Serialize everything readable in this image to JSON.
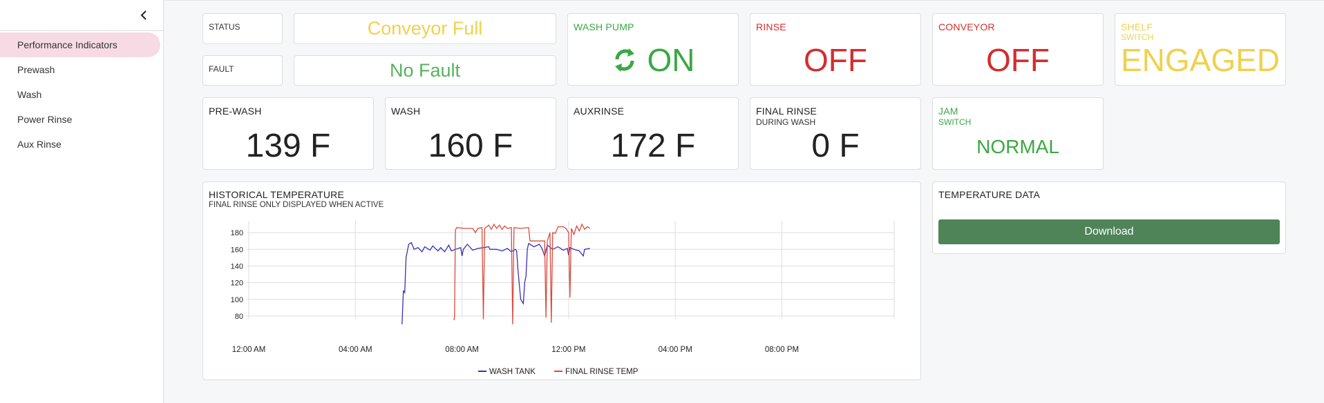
{
  "sidebar": {
    "items": [
      {
        "label": "Performance Indicators",
        "active": true
      },
      {
        "label": "Prewash",
        "active": false
      },
      {
        "label": "Wash",
        "active": false
      },
      {
        "label": "Power Rinse",
        "active": false
      },
      {
        "label": "Aux Rinse",
        "active": false
      }
    ]
  },
  "status": {
    "label": "STATUS",
    "value": "Conveyor Full"
  },
  "fault": {
    "label": "FAULT",
    "value": "No Fault"
  },
  "wash_pump": {
    "label": "WASH PUMP",
    "value": "ON",
    "icon": "sync-icon"
  },
  "rinse": {
    "label": "RINSE",
    "value": "OFF"
  },
  "conveyor": {
    "label": "CONVEYOR",
    "value": "OFF"
  },
  "shelf_switch": {
    "label": "SHELF",
    "sublabel": "SWITCH",
    "value": "ENGAGED"
  },
  "prewash": {
    "label": "PRE-WASH",
    "value": "139 F"
  },
  "wash": {
    "label": "WASH",
    "value": "160 F"
  },
  "auxrinse": {
    "label": "AUXRINSE",
    "value": "172 F"
  },
  "final_rinse": {
    "label": "FINAL RINSE",
    "sublabel": "DURING WASH",
    "value": "0 F"
  },
  "jam_switch": {
    "label": "JAM",
    "sublabel": "SWITCH",
    "value": "NORMAL"
  },
  "history": {
    "title": "HISTORICAL TEMPERATURE",
    "subtitle": "FINAL RINSE ONLY DISPLAYED WHEN ACTIVE"
  },
  "temperature_data": {
    "title": "TEMPERATURE DATA",
    "download_label": "Download"
  },
  "colors": {
    "yellow": "#f0d14d",
    "green": "#3aa843",
    "red": "#d42d2d",
    "wash_series": "#3a2fb5",
    "rinse_series": "#d94a3d",
    "button": "#4f8459",
    "active_nav": "#f6dbe4"
  },
  "chart_data": {
    "type": "line",
    "x_ticks": [
      "12:00 AM",
      "04:00 AM",
      "08:00 AM",
      "12:00 PM",
      "04:00 PM",
      "08:00 PM"
    ],
    "x_range_hours": [
      0,
      24
    ],
    "y_ticks": [
      80,
      100,
      120,
      140,
      160,
      180
    ],
    "ylim": [
      70,
      190
    ],
    "legend": "bottom",
    "series": [
      {
        "name": "WASH TANK",
        "color": "#3a2fb5",
        "points": [
          [
            5.75,
            70
          ],
          [
            5.8,
            110
          ],
          [
            5.85,
            108
          ],
          [
            5.9,
            150
          ],
          [
            6.0,
            166
          ],
          [
            6.1,
            168
          ],
          [
            6.2,
            160
          ],
          [
            6.35,
            162
          ],
          [
            6.5,
            157
          ],
          [
            6.6,
            163
          ],
          [
            6.8,
            159
          ],
          [
            6.9,
            164
          ],
          [
            7.1,
            158
          ],
          [
            7.2,
            162
          ],
          [
            7.35,
            157
          ],
          [
            7.5,
            165
          ],
          [
            7.6,
            158
          ],
          [
            7.75,
            160
          ],
          [
            7.95,
            162
          ],
          [
            8.0,
            152
          ],
          [
            8.05,
            160
          ],
          [
            8.2,
            166
          ],
          [
            8.4,
            159
          ],
          [
            8.6,
            161
          ],
          [
            8.8,
            162
          ],
          [
            9.0,
            163
          ],
          [
            9.05,
            160
          ],
          [
            9.3,
            160
          ],
          [
            9.5,
            158
          ],
          [
            9.7,
            161
          ],
          [
            9.85,
            157
          ],
          [
            10.0,
            160
          ],
          [
            10.05,
            158
          ],
          [
            10.1,
            135
          ],
          [
            10.2,
            100
          ],
          [
            10.3,
            95
          ],
          [
            10.35,
            120
          ],
          [
            10.4,
            128
          ],
          [
            10.45,
            160
          ],
          [
            10.5,
            167
          ],
          [
            10.7,
            163
          ],
          [
            10.9,
            166
          ],
          [
            11.0,
            161
          ],
          [
            11.1,
            152
          ],
          [
            11.2,
            165
          ],
          [
            11.4,
            160
          ],
          [
            11.6,
            163
          ],
          [
            11.8,
            159
          ],
          [
            11.95,
            161
          ],
          [
            12.0,
            153
          ],
          [
            12.05,
            162
          ],
          [
            12.2,
            160
          ],
          [
            12.4,
            158
          ],
          [
            12.55,
            152
          ],
          [
            12.6,
            160
          ],
          [
            12.8,
            161
          ]
        ]
      },
      {
        "name": "FINAL RINSE TEMP",
        "color": "#d94a3d",
        "points": [
          [
            7.7,
            75
          ],
          [
            7.72,
            80
          ],
          [
            7.75,
            183
          ],
          [
            7.8,
            186
          ],
          [
            8.1,
            185
          ],
          [
            8.4,
            185
          ],
          [
            8.5,
            180
          ],
          [
            8.6,
            185
          ],
          [
            8.75,
            186
          ],
          [
            8.8,
            76
          ],
          [
            8.85,
            185
          ],
          [
            9.0,
            189
          ],
          [
            9.1,
            184
          ],
          [
            9.2,
            190
          ],
          [
            9.3,
            185
          ],
          [
            9.4,
            189
          ],
          [
            9.5,
            184
          ],
          [
            9.6,
            188
          ],
          [
            9.7,
            185
          ],
          [
            9.85,
            186
          ],
          [
            9.9,
            70
          ],
          [
            9.95,
            186
          ],
          [
            10.2,
            185
          ],
          [
            10.5,
            186
          ],
          [
            10.55,
            170
          ],
          [
            10.7,
            170
          ],
          [
            10.8,
            170
          ],
          [
            11.0,
            170
          ],
          [
            11.1,
            170
          ],
          [
            11.15,
            78
          ],
          [
            11.2,
            170
          ],
          [
            11.3,
            180
          ],
          [
            11.35,
            72
          ],
          [
            11.4,
            180
          ],
          [
            11.5,
            179
          ],
          [
            11.6,
            187
          ],
          [
            11.8,
            187
          ],
          [
            11.9,
            185
          ],
          [
            12.0,
            180
          ],
          [
            12.05,
            102
          ],
          [
            12.1,
            185
          ],
          [
            12.2,
            178
          ],
          [
            12.3,
            188
          ],
          [
            12.4,
            182
          ],
          [
            12.5,
            190
          ],
          [
            12.6,
            184
          ],
          [
            12.7,
            187
          ],
          [
            12.8,
            185
          ]
        ]
      }
    ]
  }
}
